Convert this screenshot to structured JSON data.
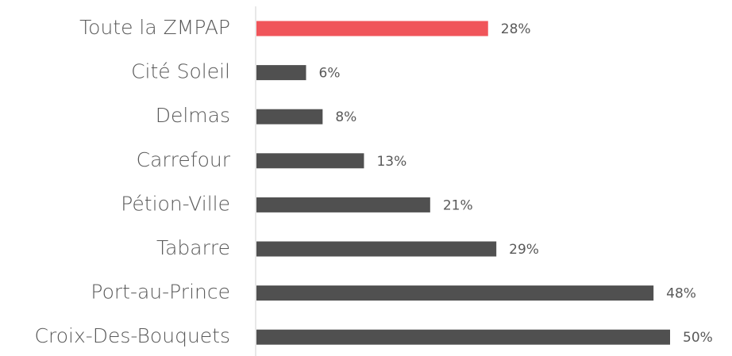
{
  "chart_data": {
    "type": "hbar",
    "categories": [
      "Toute la ZMPAP",
      "Cité Soleil",
      "Delmas",
      "Carrefour",
      "Pétion-Ville",
      "Tabarre",
      "Port-au-Prince",
      "Croix-Des-Bouquets"
    ],
    "values": [
      28,
      6,
      8,
      13,
      21,
      29,
      48,
      50
    ],
    "value_labels": [
      "28%",
      "6%",
      "8%",
      "13%",
      "21%",
      "29%",
      "48%",
      "50%"
    ],
    "colors": [
      "#f0555a",
      "#505050",
      "#505050",
      "#505050",
      "#505050",
      "#505050",
      "#505050",
      "#505050"
    ],
    "xlim": [
      0,
      50
    ]
  }
}
